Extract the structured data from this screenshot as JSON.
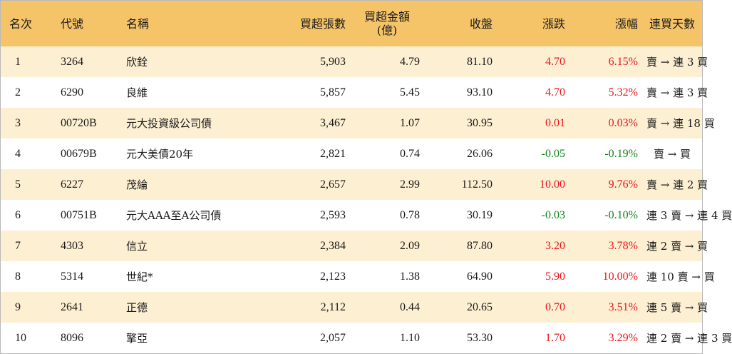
{
  "header": {
    "rank": "名次",
    "code": "代號",
    "name": "名稱",
    "buy_volume": "買超張數",
    "buy_amount_line1": "買超金額",
    "buy_amount_line2": "(億)",
    "close": "收盤",
    "change": "漲跌",
    "change_pct": "漲幅",
    "consecutive_days": "連買天數"
  },
  "colors": {
    "header_bg": "#f5c468",
    "stripe_bg": "#fdefd2",
    "up": "#e8151b",
    "down": "#10841a"
  },
  "rows": [
    {
      "rank": "1",
      "code": "3264",
      "name": "欣銓",
      "buy_volume": "5,903",
      "buy_amount": "4.79",
      "close": "81.10",
      "change": "4.70",
      "change_pct": "6.15%",
      "direction": "up",
      "days": "賣 → 連 3 買"
    },
    {
      "rank": "2",
      "code": "6290",
      "name": "良維",
      "buy_volume": "5,857",
      "buy_amount": "5.45",
      "close": "93.10",
      "change": "4.70",
      "change_pct": "5.32%",
      "direction": "up",
      "days": "賣 → 連 3 買"
    },
    {
      "rank": "3",
      "code": "00720B",
      "name": "元大投資級公司債",
      "buy_volume": "3,467",
      "buy_amount": "1.07",
      "close": "30.95",
      "change": "0.01",
      "change_pct": "0.03%",
      "direction": "up",
      "days": "賣 → 連 18 買"
    },
    {
      "rank": "4",
      "code": "00679B",
      "name": "元大美債20年",
      "buy_volume": "2,821",
      "buy_amount": "0.74",
      "close": "26.06",
      "change": "-0.05",
      "change_pct": "-0.19%",
      "direction": "down",
      "days": "賣 → 買"
    },
    {
      "rank": "5",
      "code": "6227",
      "name": "茂綸",
      "buy_volume": "2,657",
      "buy_amount": "2.99",
      "close": "112.50",
      "change": "10.00",
      "change_pct": "9.76%",
      "direction": "up",
      "days": "賣 → 連 2 買"
    },
    {
      "rank": "6",
      "code": "00751B",
      "name": "元大AAA至A公司債",
      "buy_volume": "2,593",
      "buy_amount": "0.78",
      "close": "30.19",
      "change": "-0.03",
      "change_pct": "-0.10%",
      "direction": "down",
      "days": "連 3 賣 → 連 4 買"
    },
    {
      "rank": "7",
      "code": "4303",
      "name": "信立",
      "buy_volume": "2,384",
      "buy_amount": "2.09",
      "close": "87.80",
      "change": "3.20",
      "change_pct": "3.78%",
      "direction": "up",
      "days": "連 2 賣 → 買"
    },
    {
      "rank": "8",
      "code": "5314",
      "name": "世紀*",
      "buy_volume": "2,123",
      "buy_amount": "1.38",
      "close": "64.90",
      "change": "5.90",
      "change_pct": "10.00%",
      "direction": "up",
      "days": "連 10 賣 → 買"
    },
    {
      "rank": "9",
      "code": "2641",
      "name": "正德",
      "buy_volume": "2,112",
      "buy_amount": "0.44",
      "close": "20.65",
      "change": "0.70",
      "change_pct": "3.51%",
      "direction": "up",
      "days": "連 5 賣 → 買"
    },
    {
      "rank": "10",
      "code": "8096",
      "name": "擎亞",
      "buy_volume": "2,057",
      "buy_amount": "1.10",
      "close": "53.30",
      "change": "1.70",
      "change_pct": "3.29%",
      "direction": "up",
      "days": "連 2 賣 → 連 3 買"
    }
  ]
}
